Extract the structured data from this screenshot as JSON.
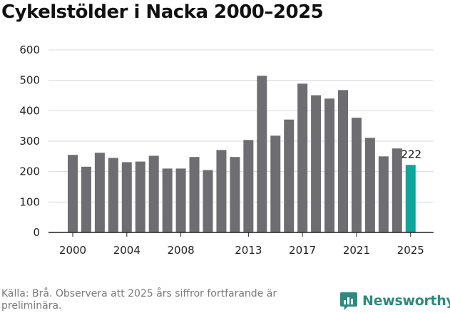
{
  "title": "Cykelstölder i Nacka 2000–2025",
  "source": "Källa: Brå. Observera att 2025 års siffror fortfarande är preliminära.",
  "logo": {
    "text": "Newsworthy",
    "icon": "newsworthy-chart-bubble-icon"
  },
  "colors": {
    "bar": "#6e6d71",
    "highlight": "#10a59a",
    "grid": "#d9d9d9",
    "axis": "#222222",
    "logo": "#2e8a7e"
  },
  "chart_data": {
    "type": "bar",
    "title": "Cykelstölder i Nacka 2000–2025",
    "xlabel": "",
    "ylabel": "",
    "categories": [
      2000,
      2001,
      2002,
      2003,
      2004,
      2005,
      2006,
      2007,
      2008,
      2009,
      2010,
      2011,
      2012,
      2013,
      2014,
      2015,
      2016,
      2017,
      2018,
      2019,
      2020,
      2021,
      2022,
      2023,
      2024,
      2025
    ],
    "values": [
      255,
      216,
      262,
      245,
      231,
      233,
      252,
      210,
      210,
      248,
      205,
      271,
      248,
      304,
      515,
      318,
      371,
      489,
      451,
      440,
      468,
      377,
      311,
      250,
      276,
      222
    ],
    "highlight_index": 25,
    "highlight_label": "222",
    "x_tick_labels": [
      "2000",
      "2004",
      "2008",
      "2013",
      "2017",
      "2021",
      "2025"
    ],
    "y_ticks": [
      0,
      100,
      200,
      300,
      400,
      500,
      600
    ],
    "ylim": [
      0,
      600
    ],
    "grid": true,
    "legend": "none"
  }
}
